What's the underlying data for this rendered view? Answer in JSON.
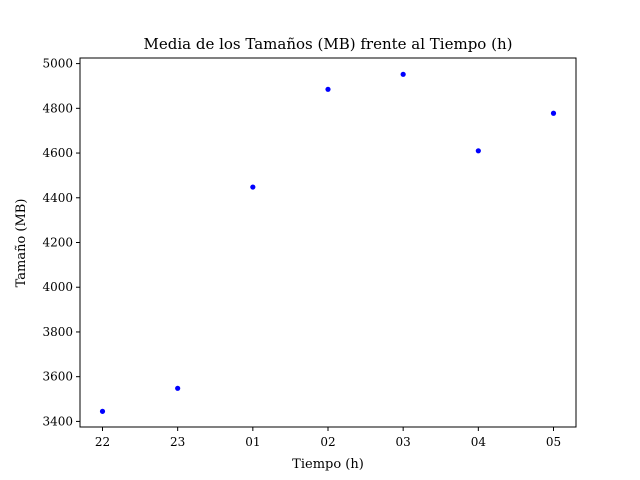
{
  "chart_data": {
    "type": "scatter",
    "title": "Media de los Tamaños (MB) frente al Tiempo (h)",
    "xlabel": "Tiempo (h)",
    "ylabel": "Tamaño (MB)",
    "categories": [
      "22",
      "23",
      "01",
      "02",
      "03",
      "04",
      "05"
    ],
    "y_ticks": [
      "3400",
      "3600",
      "3800",
      "4000",
      "4200",
      "4400",
      "4600",
      "4800",
      "5000"
    ],
    "ylim": [
      3375,
      5025
    ],
    "grid": false,
    "legend": "none",
    "marker_color": "#0000ff",
    "series": [
      {
        "values": [
          3445,
          3548,
          4448,
          4885,
          4952,
          4610,
          4778
        ]
      }
    ]
  }
}
